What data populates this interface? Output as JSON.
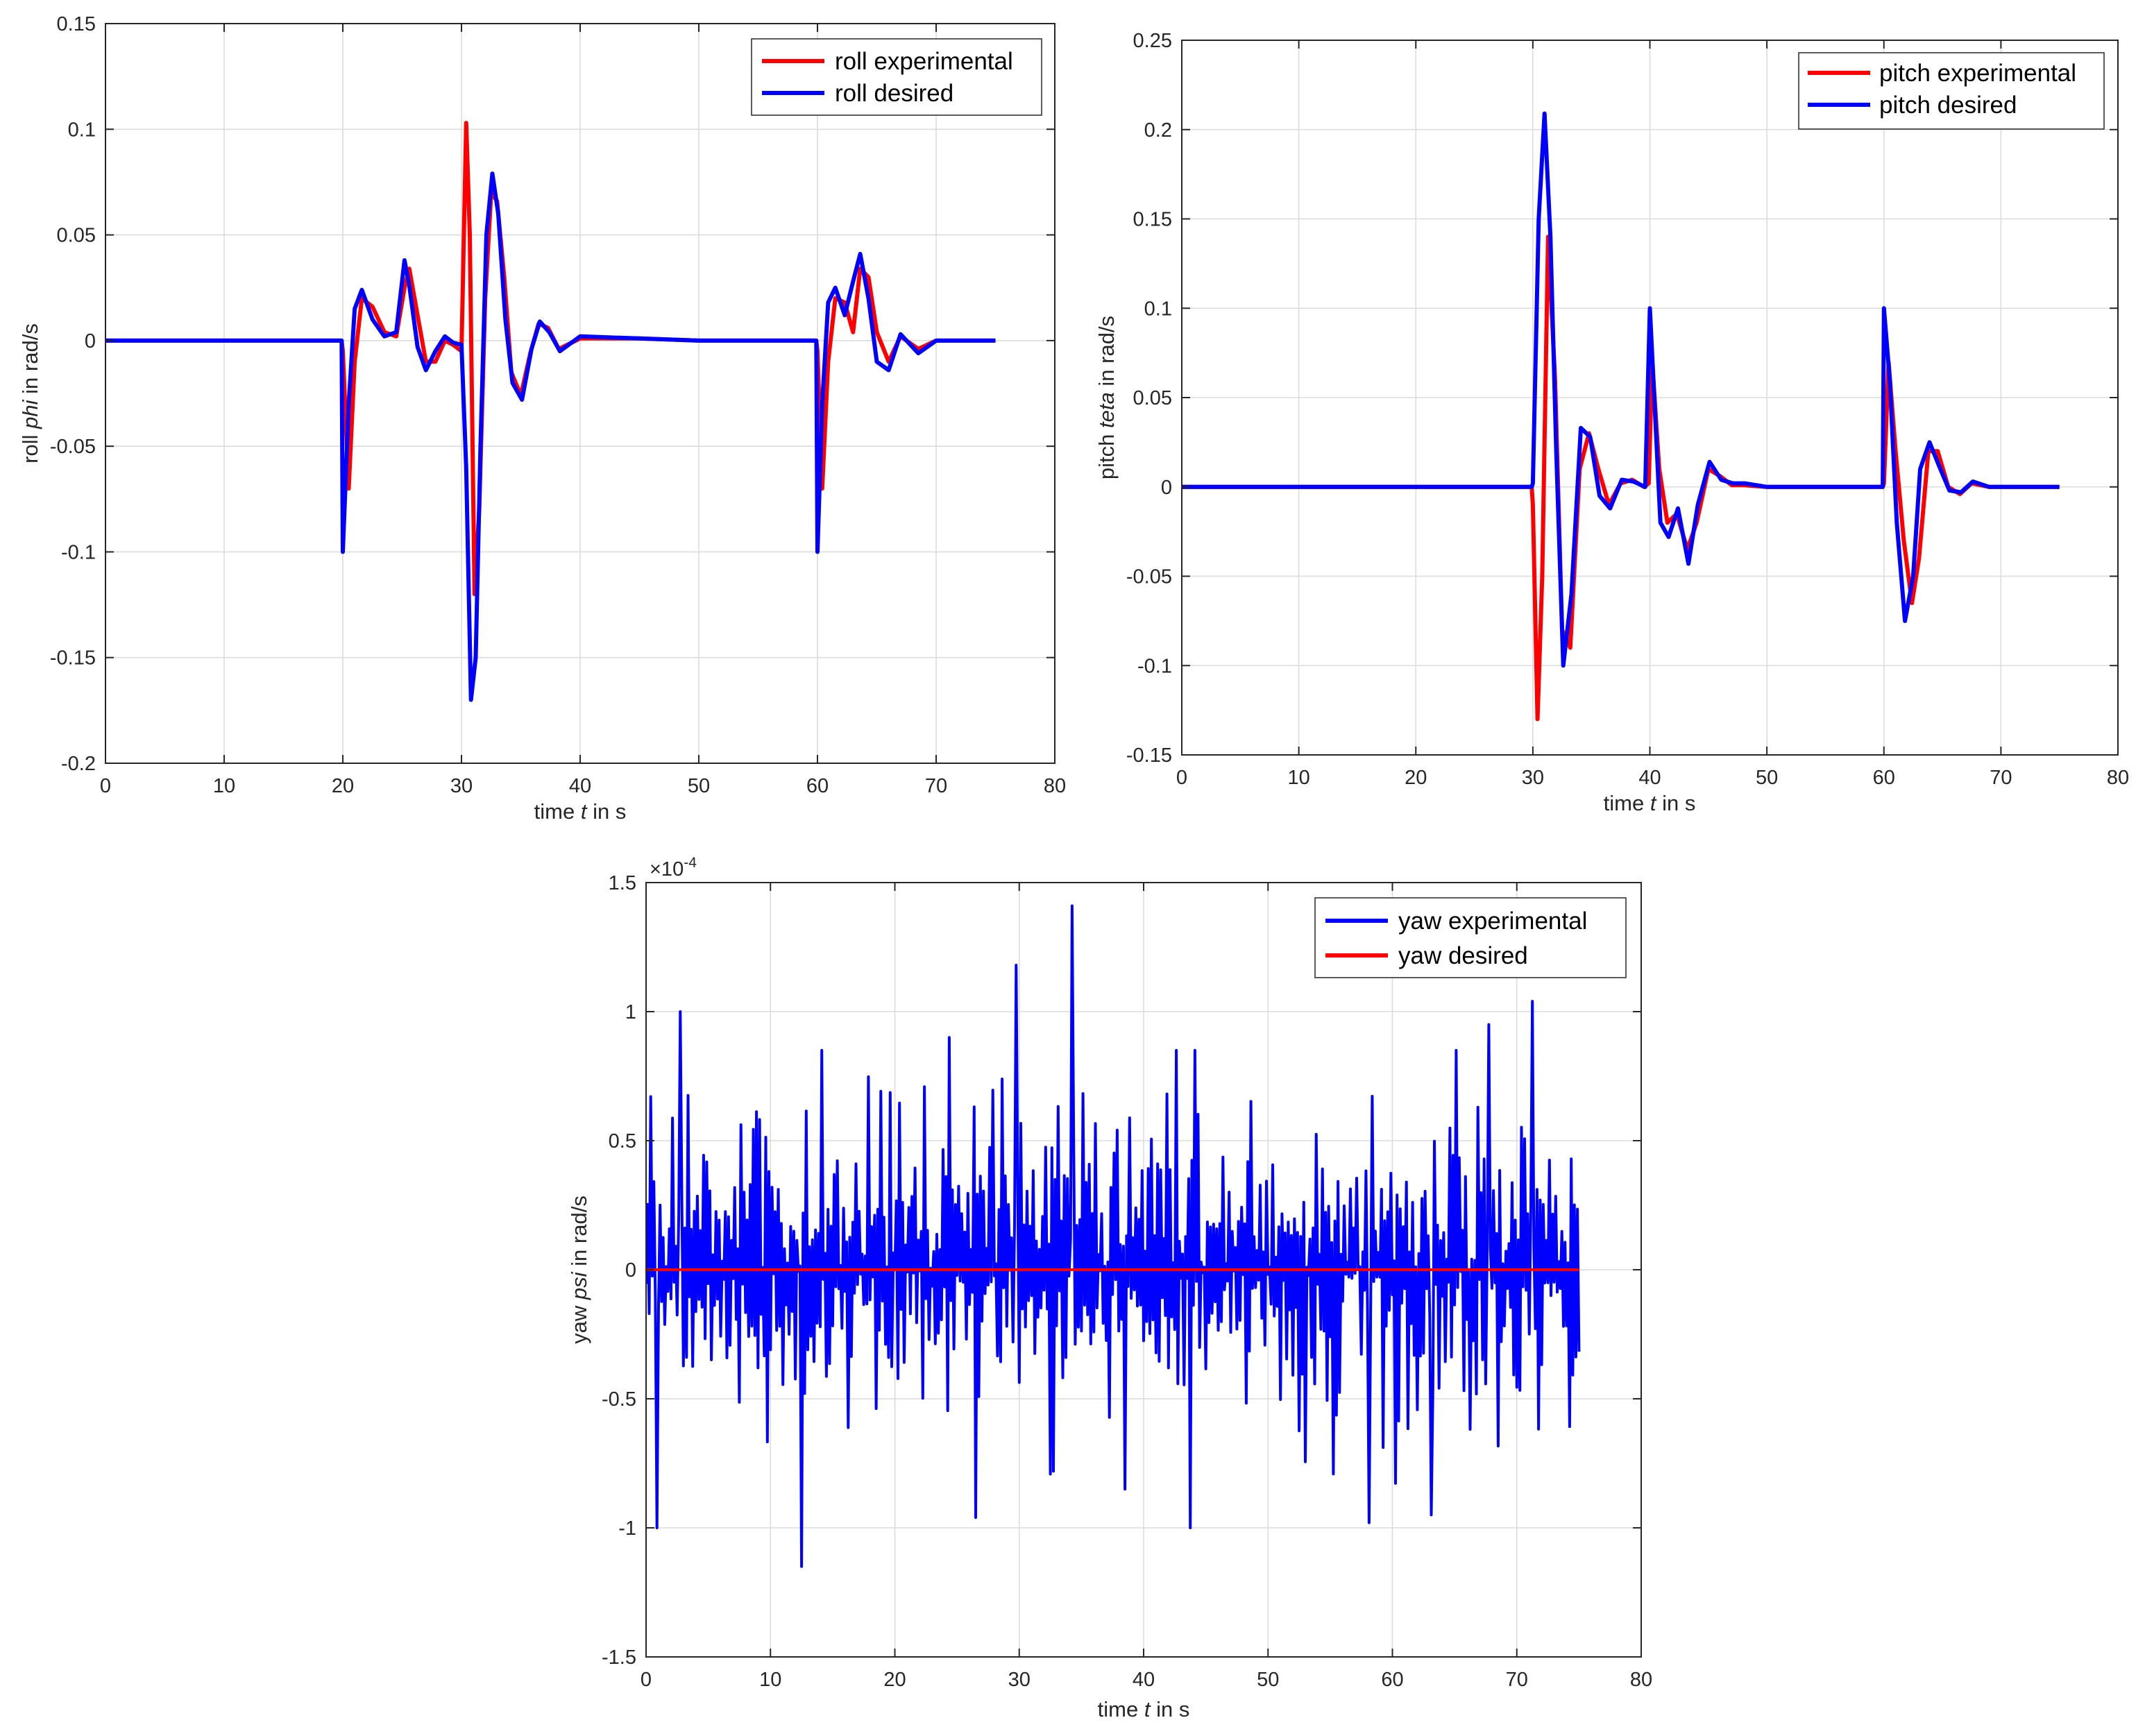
{
  "colors": {
    "red": "#ff0000",
    "blue": "#0000ff",
    "axis": "#262626",
    "grid": "#dcdcdc"
  },
  "chart_data": [
    {
      "type": "line",
      "id": "roll",
      "xlabel_prefix": "time",
      "xlabel_var": "t",
      "xlabel_suffix": "in s",
      "ylabel_prefix": "roll",
      "ylabel_var": "phi",
      "ylabel_suffix": "in rad/s",
      "xlim": [
        0,
        80
      ],
      "ylim": [
        -0.2,
        0.15
      ],
      "xticks": [
        0,
        10,
        20,
        30,
        40,
        50,
        60,
        70,
        80
      ],
      "xtick_labels": [
        "0",
        "10",
        "20",
        "30",
        "40",
        "50",
        "60",
        "70",
        "80"
      ],
      "yticks": [
        -0.2,
        -0.15,
        -0.1,
        -0.05,
        0,
        0.05,
        0.1,
        0.15
      ],
      "ytick_labels": [
        "-0.2",
        "-0.15",
        "-0.1",
        "-0.05",
        "0",
        "0.05",
        "0.1",
        "0.15"
      ],
      "grid": true,
      "legend_position": "top-right",
      "legend": [
        "roll experimental",
        "roll desired"
      ],
      "series": [
        {
          "name": "roll experimental",
          "color": "#ff0000",
          "x": [
            0,
            5,
            10,
            15,
            19.9,
            20,
            20.5,
            21,
            21.6,
            22.5,
            23.5,
            24.5,
            25.2,
            25.6,
            26.3,
            27,
            27.8,
            28.6,
            29.3,
            30,
            30.4,
            30.7,
            31.1,
            31.5,
            32,
            32.5,
            33,
            33.6,
            34.2,
            35,
            35.8,
            36.5,
            37.3,
            38.2,
            40,
            45,
            50,
            55,
            59.9,
            60,
            60.4,
            60.9,
            61.5,
            62.3,
            63,
            63.6,
            64.3,
            65,
            66,
            67,
            68.5,
            70,
            72,
            75
          ],
          "y": [
            0,
            0,
            0,
            0,
            0,
            -0.005,
            -0.07,
            -0.01,
            0.02,
            0.016,
            0.004,
            0.002,
            0.025,
            0.034,
            0.012,
            -0.01,
            -0.01,
            0,
            -0.002,
            -0.005,
            0.103,
            0.05,
            -0.12,
            -0.08,
            0.02,
            0.07,
            0.066,
            0.03,
            -0.015,
            -0.026,
            -0.006,
            0.008,
            0.006,
            -0.004,
            0.001,
            0.001,
            0,
            0,
            0,
            -0.005,
            -0.07,
            -0.01,
            0.02,
            0.018,
            0.004,
            0.034,
            0.03,
            0.004,
            -0.01,
            0.002,
            -0.004,
            0,
            0,
            0
          ]
        },
        {
          "name": "roll desired",
          "color": "#0000ff",
          "x": [
            0,
            5,
            10,
            15,
            19.9,
            20,
            20.5,
            21,
            21.6,
            22.5,
            23.5,
            24.5,
            25.2,
            25.6,
            26.3,
            27,
            27.8,
            28.6,
            29.3,
            30,
            30.4,
            30.8,
            31.2,
            31.6,
            32.1,
            32.6,
            33.1,
            33.7,
            34.3,
            35.1,
            35.9,
            36.6,
            37.4,
            38.3,
            40,
            45,
            50,
            55,
            59.9,
            60,
            60.4,
            60.9,
            61.5,
            62.3,
            63,
            63.6,
            64.3,
            65,
            66,
            67,
            68.5,
            70,
            72,
            75
          ],
          "y": [
            0,
            0,
            0,
            0,
            0,
            -0.1,
            -0.03,
            0.015,
            0.024,
            0.01,
            0.002,
            0.004,
            0.038,
            0.026,
            -0.003,
            -0.014,
            -0.005,
            0.002,
            -0.001,
            -0.002,
            -0.06,
            -0.17,
            -0.15,
            -0.05,
            0.05,
            0.079,
            0.06,
            0.01,
            -0.02,
            -0.028,
            -0.004,
            0.009,
            0.004,
            -0.005,
            0.002,
            0.001,
            0,
            0,
            0,
            -0.1,
            -0.03,
            0.018,
            0.025,
            0.012,
            0.028,
            0.041,
            0.02,
            -0.01,
            -0.014,
            0.003,
            -0.006,
            0,
            0,
            0
          ]
        }
      ]
    },
    {
      "type": "line",
      "id": "pitch",
      "xlabel_prefix": "time",
      "xlabel_var": "t",
      "xlabel_suffix": "in s",
      "ylabel_prefix": "pitch",
      "ylabel_var": "teta",
      "ylabel_suffix": "in rad/s",
      "xlim": [
        0,
        80
      ],
      "ylim": [
        -0.15,
        0.25
      ],
      "xticks": [
        0,
        10,
        20,
        30,
        40,
        50,
        60,
        70,
        80
      ],
      "xtick_labels": [
        "0",
        "10",
        "20",
        "30",
        "40",
        "50",
        "60",
        "70",
        "80"
      ],
      "yticks": [
        -0.15,
        -0.1,
        -0.05,
        0,
        0.05,
        0.1,
        0.15,
        0.2,
        0.25
      ],
      "ytick_labels": [
        "-0.15",
        "-0.1",
        "-0.05",
        "0",
        "0.05",
        "0.1",
        "0.15",
        "0.2",
        "0.25"
      ],
      "grid": true,
      "legend_position": "top-right",
      "legend": [
        "pitch experimental",
        "pitch desired"
      ],
      "series": [
        {
          "name": "pitch experimental",
          "color": "#ff0000",
          "x": [
            0,
            5,
            10,
            15,
            20,
            25,
            29.9,
            30,
            30.4,
            30.8,
            31.3,
            31.9,
            32.5,
            33.2,
            34,
            34.8,
            35.6,
            36.5,
            37.5,
            38.5,
            39.5,
            39.9,
            40.2,
            40.8,
            41.5,
            42.3,
            43.2,
            44,
            45,
            46,
            47,
            48,
            50,
            55,
            59.9,
            60,
            60.4,
            61,
            61.7,
            62.4,
            63,
            63.8,
            64.6,
            65.5,
            66.5,
            67.5,
            69,
            72,
            75
          ],
          "y": [
            0,
            0,
            0,
            0,
            0,
            0,
            0,
            -0.01,
            -0.13,
            -0.05,
            0.14,
            0.06,
            -0.08,
            -0.09,
            0.01,
            0.03,
            0.01,
            -0.01,
            0.002,
            0.004,
            0,
            0.002,
            0.07,
            0.01,
            -0.02,
            -0.015,
            -0.035,
            -0.02,
            0.01,
            0.006,
            0.001,
            0.001,
            0,
            0,
            0,
            0.002,
            0.07,
            0.02,
            -0.03,
            -0.065,
            -0.04,
            0.02,
            0.02,
            0,
            -0.004,
            0.002,
            0,
            0,
            0
          ]
        },
        {
          "name": "pitch desired",
          "color": "#0000ff",
          "x": [
            0,
            5,
            10,
            15,
            20,
            25,
            29.9,
            30,
            30.5,
            31,
            31.5,
            32,
            32.6,
            33.3,
            34.1,
            34.9,
            35.7,
            36.6,
            37.6,
            38.6,
            39.6,
            40,
            40.3,
            40.9,
            41.6,
            42.4,
            43.3,
            44.1,
            45.1,
            46.1,
            47.1,
            48.1,
            50,
            55,
            59.9,
            60,
            60.5,
            61.1,
            61.8,
            62.5,
            63.1,
            63.9,
            64.7,
            65.6,
            66.6,
            67.6,
            69,
            72,
            75
          ],
          "y": [
            0,
            0,
            0,
            0,
            0,
            0,
            0,
            0.002,
            0.15,
            0.209,
            0.14,
            0.02,
            -0.1,
            -0.06,
            0.033,
            0.028,
            -0.005,
            -0.012,
            0.004,
            0.003,
            0,
            0.1,
            0.06,
            -0.02,
            -0.028,
            -0.012,
            -0.043,
            -0.01,
            0.014,
            0.004,
            0.002,
            0.002,
            0,
            0,
            0,
            0.1,
            0.06,
            -0.02,
            -0.075,
            -0.05,
            0.01,
            0.025,
            0.012,
            -0.002,
            -0.003,
            0.003,
            0,
            0,
            0
          ]
        }
      ]
    },
    {
      "type": "line",
      "id": "yaw",
      "xlabel_prefix": "time",
      "xlabel_var": "t",
      "xlabel_suffix": "in s",
      "ylabel_prefix": "yaw",
      "ylabel_var": "psi",
      "ylabel_suffix": "in rad/s",
      "multiplier_base": "×10",
      "multiplier_exp": "-4",
      "xlim": [
        0,
        80
      ],
      "ylim": [
        -1.5,
        1.5
      ],
      "xticks": [
        0,
        10,
        20,
        30,
        40,
        50,
        60,
        70,
        80
      ],
      "xtick_labels": [
        "0",
        "10",
        "20",
        "30",
        "40",
        "50",
        "60",
        "70",
        "80"
      ],
      "yticks": [
        -1.5,
        -1,
        -0.5,
        0,
        0.5,
        1,
        1.5
      ],
      "ytick_labels": [
        "-1.5",
        "-1",
        "-0.5",
        "0",
        "0.5",
        "1",
        "1.5"
      ],
      "grid": true,
      "legend_position": "top-right",
      "legend": [
        "yaw experimental",
        "yaw desired"
      ],
      "series": [
        {
          "name": "yaw experimental",
          "color": "#0000ff",
          "x_range": [
            0,
            75
          ],
          "points": 601,
          "seed": 7,
          "amplitude": 0.5,
          "peaks": [
            [
              2.8,
              1.0
            ],
            [
              0.9,
              -1.0
            ],
            [
              12.5,
              -1.15
            ],
            [
              29.7,
              1.18
            ],
            [
              34.3,
              1.41
            ],
            [
              26.5,
              -0.96
            ],
            [
              43.8,
              -1.0
            ],
            [
              58.1,
              -0.98
            ],
            [
              63.1,
              -0.95
            ],
            [
              71.3,
              1.04
            ],
            [
              67.8,
              0.95
            ],
            [
              24.4,
              0.9
            ]
          ],
          "y_summary": "noise within [-1.15, 1.41] (×1e-4)"
        },
        {
          "name": "yaw desired",
          "color": "#ff0000",
          "x": [
            0,
            75
          ],
          "y": [
            0,
            0
          ]
        }
      ]
    }
  ]
}
